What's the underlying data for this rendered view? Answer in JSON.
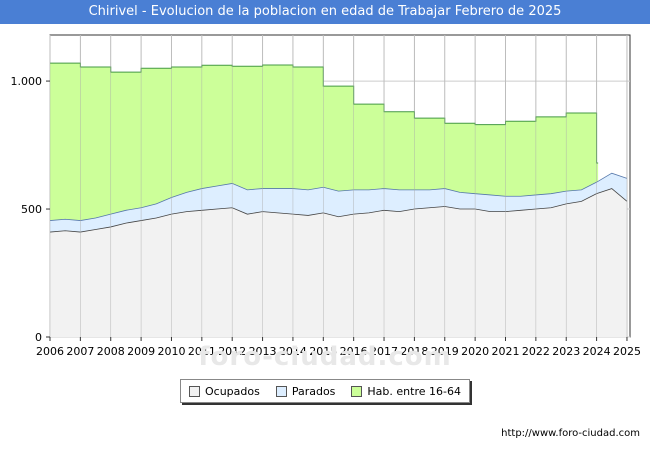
{
  "chart_data": {
    "type": "area",
    "title": "Chirivel - Evolucion de la poblacion en edad de Trabajar Febrero de 2025",
    "xlabel": "",
    "ylabel": "",
    "xlim": [
      2006,
      2025.1
    ],
    "ylim": [
      0,
      1180
    ],
    "yticks": [
      {
        "value": 0,
        "label": "0"
      },
      {
        "value": 500,
        "label": "500"
      },
      {
        "value": 1000,
        "label": "1.000"
      }
    ],
    "xticks": [
      "2006",
      "2007",
      "2008",
      "2009",
      "2010",
      "2011",
      "2012",
      "2013",
      "2014",
      "2015",
      "2016",
      "2017",
      "2018",
      "2019",
      "2020",
      "2021",
      "2022",
      "2023",
      "2024",
      "2025"
    ],
    "grid": true,
    "legend_position": "bottom",
    "series": [
      {
        "name": "Ocupados",
        "color": "#f2f2f2",
        "stroke": "#444444",
        "x": [
          2006,
          2006.5,
          2007,
          2007.5,
          2008,
          2008.5,
          2009,
          2009.5,
          2010,
          2010.5,
          2011,
          2011.5,
          2012,
          2012.5,
          2013,
          2013.5,
          2014,
          2014.5,
          2015,
          2015.5,
          2016,
          2016.5,
          2017,
          2017.5,
          2018,
          2018.5,
          2019,
          2019.5,
          2020,
          2020.5,
          2021,
          2021.5,
          2022,
          2022.5,
          2023,
          2023.5,
          2024,
          2024.5,
          2025
        ],
        "values": [
          410,
          415,
          410,
          420,
          430,
          445,
          455,
          465,
          480,
          490,
          495,
          500,
          505,
          480,
          490,
          485,
          480,
          475,
          485,
          470,
          480,
          485,
          495,
          490,
          500,
          505,
          510,
          500,
          500,
          490,
          490,
          495,
          500,
          505,
          520,
          530,
          560,
          580,
          530
        ]
      },
      {
        "name": "Parados",
        "color": "#ddeeff",
        "stroke": "#5577aa",
        "x": [
          2006,
          2006.5,
          2007,
          2007.5,
          2008,
          2008.5,
          2009,
          2009.5,
          2010,
          2010.5,
          2011,
          2011.5,
          2012,
          2012.5,
          2013,
          2013.5,
          2014,
          2014.5,
          2015,
          2015.5,
          2016,
          2016.5,
          2017,
          2017.5,
          2018,
          2018.5,
          2019,
          2019.5,
          2020,
          2020.5,
          2021,
          2021.5,
          2022,
          2022.5,
          2023,
          2023.5,
          2024,
          2024.5,
          2025
        ],
        "values": [
          455,
          460,
          455,
          465,
          480,
          495,
          505,
          520,
          545,
          565,
          580,
          590,
          600,
          575,
          580,
          580,
          580,
          575,
          585,
          570,
          575,
          575,
          580,
          575,
          575,
          575,
          580,
          565,
          560,
          555,
          550,
          550,
          555,
          560,
          570,
          575,
          605,
          640,
          620
        ]
      },
      {
        "name": "Hab. entre 16-64",
        "color": "#ccff99",
        "stroke": "#449944",
        "x": [
          2006,
          2007,
          2008,
          2009,
          2010,
          2011,
          2012,
          2013,
          2014,
          2015,
          2016,
          2017,
          2018,
          2019,
          2020,
          2021,
          2022,
          2023,
          2024
        ],
        "values": [
          1070,
          1055,
          1035,
          1050,
          1055,
          1062,
          1058,
          1063,
          1055,
          980,
          910,
          880,
          855,
          835,
          830,
          843,
          860,
          875,
          680
        ]
      }
    ],
    "annotations": [
      "foro-ciudad.com"
    ]
  },
  "source_text": "http://www.foro-ciudad.com",
  "colors": {
    "title_bg": "#4a7fd4",
    "plot_bg": "#ffffff",
    "grid": "#cccccc"
  }
}
